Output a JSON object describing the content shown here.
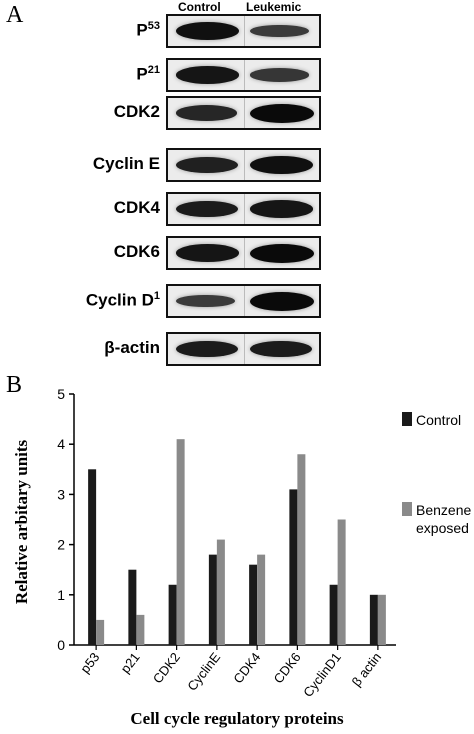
{
  "panel_a": {
    "letter": "A",
    "lanes": [
      "Control",
      "Leukemic"
    ],
    "rows": [
      {
        "label": "P",
        "sup": "53",
        "control": 0.95,
        "leukemic": 0.55
      },
      {
        "label": "P",
        "sup": "21",
        "control": 0.9,
        "leukemic": 0.6
      },
      {
        "label": "CDK2",
        "sup": "",
        "control": 0.75,
        "leukemic": 1.0
      },
      {
        "label": "Cyclin E",
        "sup": "",
        "control": 0.8,
        "leukemic": 0.95
      },
      {
        "label": "CDK4",
        "sup": "",
        "control": 0.85,
        "leukemic": 0.9
      },
      {
        "label": "CDK6",
        "sup": "",
        "control": 0.9,
        "leukemic": 1.0
      },
      {
        "label": "Cyclin D",
        "sup": "1",
        "control": 0.55,
        "leukemic": 1.0
      },
      {
        "label": "β-actin",
        "sup": "",
        "control": 0.85,
        "leukemic": 0.85
      }
    ]
  },
  "panel_b": {
    "letter": "B"
  },
  "chart_data": {
    "type": "bar",
    "categories": [
      "p53",
      "p21",
      "CDK2",
      "CyclinE",
      "CDK4",
      "CDK6",
      "CyclinD1",
      "β actin"
    ],
    "series": [
      {
        "name": "Control",
        "values": [
          3.5,
          1.5,
          1.2,
          1.8,
          1.6,
          3.1,
          1.2,
          1.0
        ],
        "color": "#1a1a1a"
      },
      {
        "name": "Benzene exposed",
        "values": [
          0.5,
          0.6,
          4.1,
          2.1,
          1.8,
          3.8,
          2.5,
          1.0
        ],
        "color": "#8a8a8a"
      }
    ],
    "ylim": [
      0,
      5
    ],
    "yticks": [
      "0",
      "1",
      "2",
      "3",
      "4",
      "5"
    ],
    "ylabel": "Relative arbitary units",
    "xlabel": "Cell cycle regulatory proteins",
    "legend": [
      {
        "text": "Control",
        "color": "#1a1a1a"
      },
      {
        "text": "Benzene",
        "text2": "exposed",
        "color": "#8a8a8a"
      }
    ],
    "legend_position": "right",
    "grid": false
  }
}
